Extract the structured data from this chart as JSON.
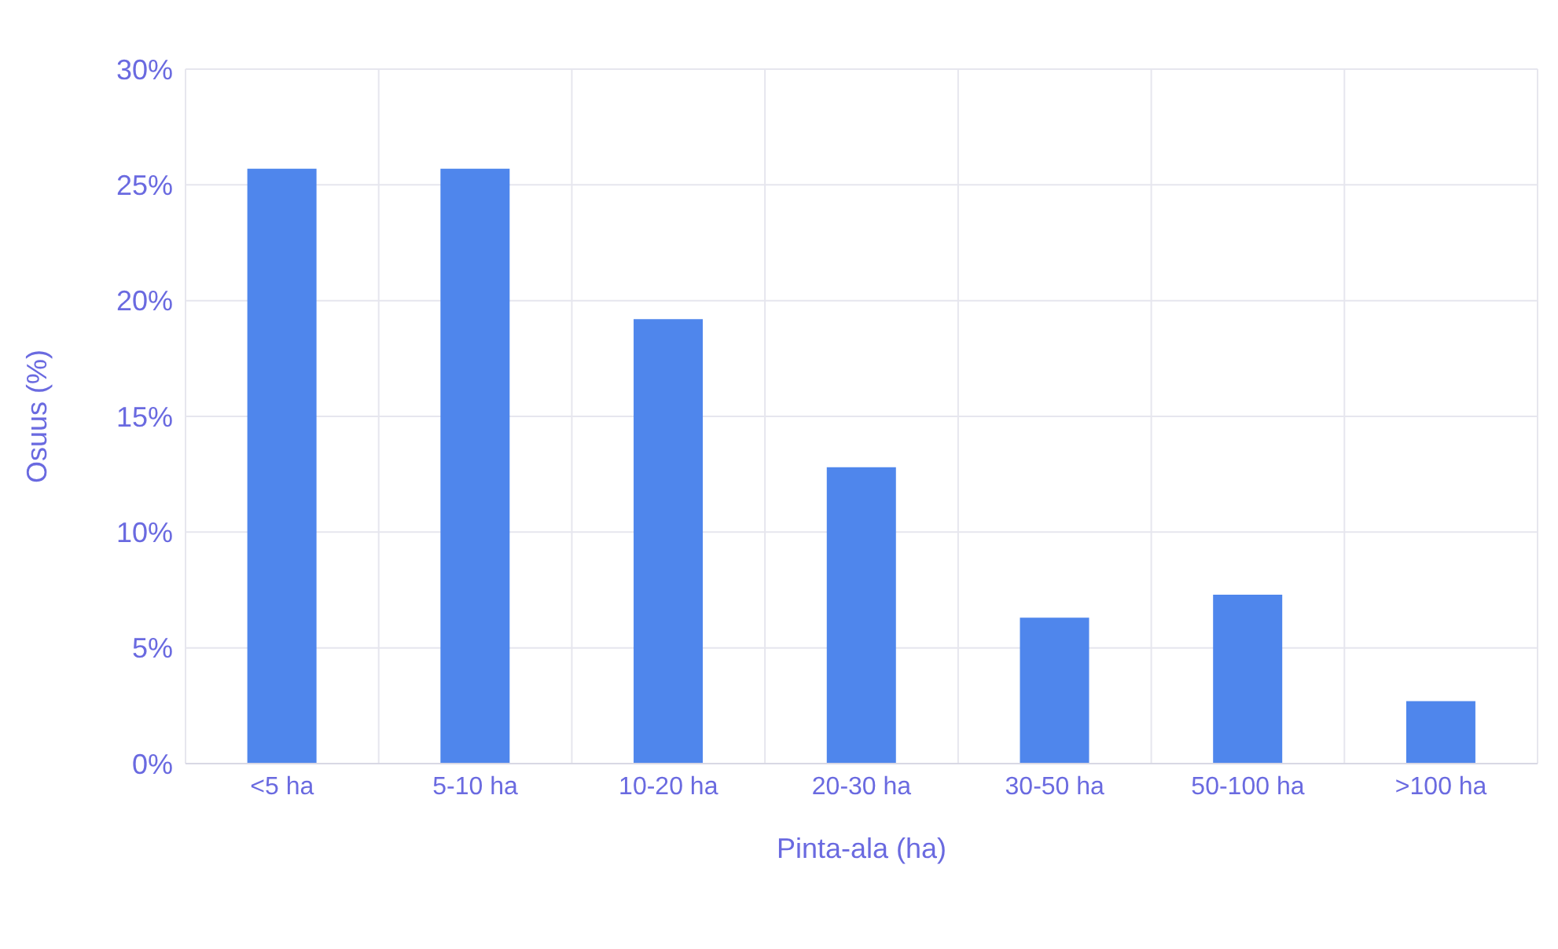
{
  "chart_data": {
    "type": "bar",
    "xlabel": "Pinta-ala (ha)",
    "ylabel": "Osuus (%)",
    "categories": [
      "<5 ha",
      "5-10 ha",
      "10-20 ha",
      "20-30 ha",
      "30-50 ha",
      "50-100 ha",
      ">100 ha"
    ],
    "values": [
      25.7,
      25.7,
      19.2,
      12.8,
      6.3,
      7.3,
      2.7
    ],
    "color": "#4f86ec",
    "ylim": [
      0,
      30
    ],
    "yticks": [
      {
        "value": 0,
        "label": "0%"
      },
      {
        "value": 5,
        "label": "5%"
      },
      {
        "value": 10,
        "label": "10%"
      },
      {
        "value": 15,
        "label": "15%"
      },
      {
        "value": 20,
        "label": "20%"
      },
      {
        "value": 25,
        "label": "25%"
      },
      {
        "value": 30,
        "label": "30%"
      }
    ],
    "grid": true
  }
}
